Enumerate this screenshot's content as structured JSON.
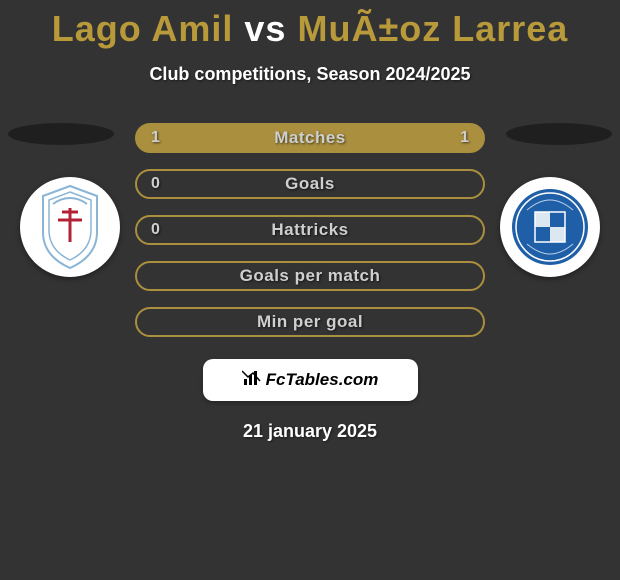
{
  "title": {
    "left": "Lago Amil",
    "vs": "vs",
    "right": "MuÃ±oz Larrea",
    "highlight_color": "#b89a3a",
    "text_color": "#ffffff",
    "fontsize": 36
  },
  "subtitle": "Club competitions, Season 2024/2025",
  "background_color": "#333333",
  "shadow_color": "#1f1f1f",
  "stat_rows": [
    {
      "label": "Matches",
      "left": "1",
      "right": "1",
      "fill": "#a98f3e",
      "border": "#a98f3e"
    },
    {
      "label": "Goals",
      "left": "0",
      "right": "",
      "fill": "transparent",
      "border": "#a98f3e"
    },
    {
      "label": "Hattricks",
      "left": "0",
      "right": "",
      "fill": "transparent",
      "border": "#a98f3e"
    },
    {
      "label": "Goals per match",
      "left": "",
      "right": "",
      "fill": "transparent",
      "border": "#a98f3e"
    },
    {
      "label": "Min per goal",
      "left": "",
      "right": "",
      "fill": "transparent",
      "border": "#a98f3e"
    }
  ],
  "stat_label_color": "#cfcfcf",
  "badge": {
    "text": "FcTables.com",
    "bg": "#ffffff",
    "text_color": "#000000"
  },
  "date": "21 january 2025",
  "crest_left": {
    "bg": "#ffffff",
    "primary": "#8ab5d6",
    "accent": "#b22234"
  },
  "crest_right": {
    "bg": "#ffffff",
    "primary": "#1e5fa8",
    "accent": "#ffffff"
  }
}
